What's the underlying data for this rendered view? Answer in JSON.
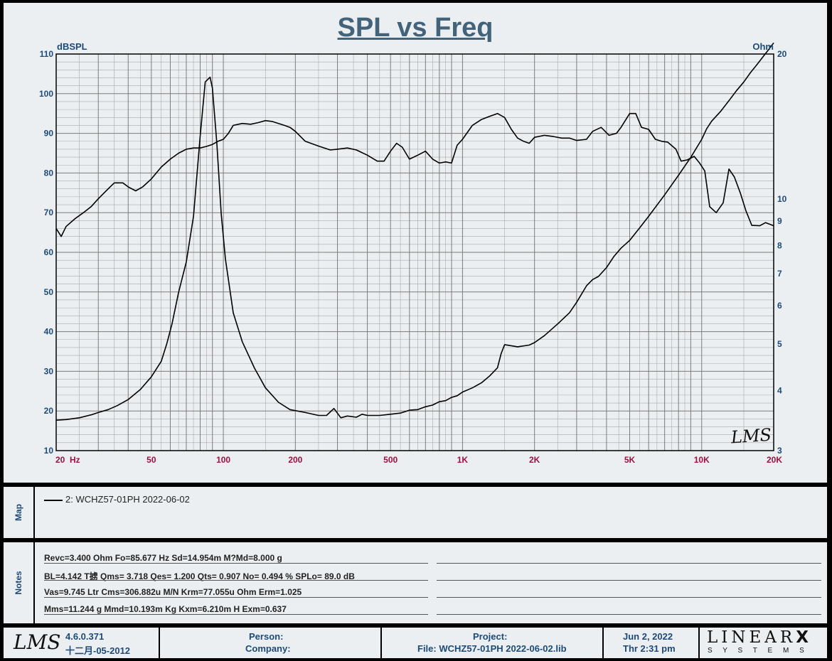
{
  "chart_data": {
    "type": "line",
    "title": "SPL vs Freq",
    "y_left_label": "dBSPL",
    "y_right_label": "Ohm",
    "x_scale": "log",
    "xlim": [
      20,
      20000
    ],
    "ylim_left": [
      10,
      110
    ],
    "ylim_right": [
      3,
      20
    ],
    "y_right_scale": "log",
    "grid": true,
    "x_ticks": [
      {
        "value": 20,
        "label": "20  Hz"
      },
      {
        "value": 50,
        "label": "50"
      },
      {
        "value": 100,
        "label": "100"
      },
      {
        "value": 200,
        "label": "200"
      },
      {
        "value": 500,
        "label": "500"
      },
      {
        "value": 1000,
        "label": "1K"
      },
      {
        "value": 2000,
        "label": "2K"
      },
      {
        "value": 5000,
        "label": "5K"
      },
      {
        "value": 10000,
        "label": "10K"
      },
      {
        "value": 20000,
        "label": "20K"
      }
    ],
    "y_left_ticks": [
      10,
      20,
      30,
      40,
      50,
      60,
      70,
      80,
      90,
      100,
      110
    ],
    "y_right_ticks": [
      3,
      4,
      5,
      6,
      7,
      8,
      9,
      10,
      20
    ],
    "series": [
      {
        "axis": "left",
        "unit": "dBSPL",
        "color": "#000000",
        "points": [
          [
            20,
            66
          ],
          [
            21,
            64
          ],
          [
            22,
            66.5
          ],
          [
            24,
            68.5
          ],
          [
            26,
            70
          ],
          [
            28,
            71.5
          ],
          [
            30,
            73.5
          ],
          [
            33,
            76
          ],
          [
            35,
            77.5
          ],
          [
            38,
            77.5
          ],
          [
            40,
            76.5
          ],
          [
            43,
            75.5
          ],
          [
            46,
            76.5
          ],
          [
            50,
            78.5
          ],
          [
            55,
            81.5
          ],
          [
            60,
            83.5
          ],
          [
            65,
            85
          ],
          [
            70,
            86
          ],
          [
            75,
            86.3
          ],
          [
            80,
            86.3
          ],
          [
            85,
            86.7
          ],
          [
            90,
            87.2
          ],
          [
            95,
            88
          ],
          [
            100,
            88.5
          ],
          [
            105,
            90
          ],
          [
            110,
            92
          ],
          [
            120,
            92.5
          ],
          [
            130,
            92.3
          ],
          [
            140,
            92.7
          ],
          [
            150,
            93.2
          ],
          [
            160,
            93
          ],
          [
            180,
            92
          ],
          [
            190,
            91.5
          ],
          [
            200,
            90.5
          ],
          [
            220,
            88
          ],
          [
            250,
            86.8
          ],
          [
            280,
            85.8
          ],
          [
            300,
            86
          ],
          [
            330,
            86.3
          ],
          [
            360,
            85.8
          ],
          [
            400,
            84.5
          ],
          [
            440,
            83
          ],
          [
            470,
            83
          ],
          [
            500,
            85.5
          ],
          [
            530,
            87.5
          ],
          [
            560,
            86.5
          ],
          [
            600,
            83.5
          ],
          [
            650,
            84.5
          ],
          [
            700,
            85.5
          ],
          [
            750,
            83.5
          ],
          [
            800,
            82.5
          ],
          [
            850,
            82.8
          ],
          [
            900,
            82.5
          ],
          [
            950,
            87
          ],
          [
            1000,
            88.5
          ],
          [
            1100,
            92
          ],
          [
            1200,
            93.5
          ],
          [
            1300,
            94.3
          ],
          [
            1400,
            95
          ],
          [
            1500,
            94
          ],
          [
            1600,
            91
          ],
          [
            1700,
            88.8
          ],
          [
            1800,
            88
          ],
          [
            1900,
            87.5
          ],
          [
            2000,
            89
          ],
          [
            2200,
            89.5
          ],
          [
            2400,
            89.2
          ],
          [
            2600,
            88.8
          ],
          [
            2800,
            88.8
          ],
          [
            3000,
            88.2
          ],
          [
            3300,
            88.5
          ],
          [
            3500,
            90.5
          ],
          [
            3800,
            91.5
          ],
          [
            4100,
            89.5
          ],
          [
            4400,
            90
          ],
          [
            4600,
            91.5
          ],
          [
            5000,
            95
          ],
          [
            5300,
            95
          ],
          [
            5600,
            91.5
          ],
          [
            6000,
            91
          ],
          [
            6400,
            88.5
          ],
          [
            6800,
            88
          ],
          [
            7200,
            87.8
          ],
          [
            7800,
            86
          ],
          [
            8200,
            83
          ],
          [
            8700,
            83.3
          ],
          [
            9300,
            84.2
          ],
          [
            9800,
            82.5
          ],
          [
            10300,
            80.5
          ],
          [
            10800,
            71.5
          ],
          [
            11500,
            70
          ],
          [
            12300,
            72.5
          ],
          [
            13000,
            81
          ],
          [
            13700,
            79
          ],
          [
            14500,
            75
          ],
          [
            15300,
            70.5
          ],
          [
            16200,
            66.8
          ],
          [
            17500,
            66.7
          ],
          [
            18500,
            67.5
          ],
          [
            20000,
            66.7
          ]
        ]
      },
      {
        "axis": "right",
        "unit": "Ohm",
        "color": "#000000",
        "points": [
          [
            20,
            3.47
          ],
          [
            22,
            3.48
          ],
          [
            25,
            3.51
          ],
          [
            28,
            3.56
          ],
          [
            30,
            3.6
          ],
          [
            33,
            3.65
          ],
          [
            36,
            3.72
          ],
          [
            40,
            3.83
          ],
          [
            45,
            4.02
          ],
          [
            50,
            4.27
          ],
          [
            55,
            4.6
          ],
          [
            58,
            5
          ],
          [
            61,
            5.5
          ],
          [
            65,
            6.4
          ],
          [
            70,
            7.4
          ],
          [
            75,
            9.2
          ],
          [
            80,
            13.5
          ],
          [
            84,
            17.5
          ],
          [
            88,
            17.9
          ],
          [
            90,
            17
          ],
          [
            94,
            13
          ],
          [
            98,
            9.3
          ],
          [
            102,
            7.5
          ],
          [
            110,
            5.8
          ],
          [
            120,
            5.05
          ],
          [
            135,
            4.45
          ],
          [
            150,
            4.05
          ],
          [
            170,
            3.78
          ],
          [
            190,
            3.65
          ],
          [
            220,
            3.6
          ],
          [
            250,
            3.55
          ],
          [
            270,
            3.55
          ],
          [
            290,
            3.67
          ],
          [
            310,
            3.51
          ],
          [
            330,
            3.54
          ],
          [
            360,
            3.52
          ],
          [
            380,
            3.57
          ],
          [
            400,
            3.55
          ],
          [
            450,
            3.55
          ],
          [
            500,
            3.57
          ],
          [
            550,
            3.59
          ],
          [
            600,
            3.64
          ],
          [
            650,
            3.65
          ],
          [
            700,
            3.7
          ],
          [
            750,
            3.73
          ],
          [
            800,
            3.79
          ],
          [
            850,
            3.81
          ],
          [
            900,
            3.87
          ],
          [
            950,
            3.9
          ],
          [
            1000,
            3.97
          ],
          [
            1100,
            4.05
          ],
          [
            1200,
            4.15
          ],
          [
            1300,
            4.29
          ],
          [
            1400,
            4.46
          ],
          [
            1450,
            4.77
          ],
          [
            1500,
            4.98
          ],
          [
            1700,
            4.93
          ],
          [
            1900,
            4.97
          ],
          [
            2000,
            5.03
          ],
          [
            2200,
            5.2
          ],
          [
            2500,
            5.5
          ],
          [
            2800,
            5.8
          ],
          [
            3000,
            6.1
          ],
          [
            3300,
            6.6
          ],
          [
            3500,
            6.8
          ],
          [
            3700,
            6.9
          ],
          [
            4000,
            7.2
          ],
          [
            4300,
            7.6
          ],
          [
            4600,
            7.9
          ],
          [
            5000,
            8.2
          ],
          [
            5500,
            8.7
          ],
          [
            6000,
            9.2
          ],
          [
            7000,
            10.2
          ],
          [
            8000,
            11.2
          ],
          [
            9000,
            12.2
          ],
          [
            10000,
            13.3
          ],
          [
            10500,
            14
          ],
          [
            11000,
            14.5
          ],
          [
            12000,
            15.2
          ],
          [
            13000,
            16
          ],
          [
            14000,
            16.8
          ],
          [
            15000,
            17.5
          ],
          [
            16000,
            18.3
          ],
          [
            17000,
            19
          ],
          [
            18000,
            19.7
          ],
          [
            19000,
            20.4
          ],
          [
            20000,
            21.1
          ]
        ]
      }
    ]
  },
  "map": {
    "side_label": "Map",
    "legend_entry": "2: WCHZ57-01PH 2022-06-02"
  },
  "notes": {
    "side_label": "Notes",
    "lines": [
      "Revc=3.400 Ohm  Fo=85.677 Hz  Sd=14.954m M?Md=8.000 g",
      "BL=4.142 T掳  Qms= 3.718  Qes= 1.200  Qts= 0.907  No= 0.494 %  SPLo= 89.0 dB",
      "Vas=9.745 Ltr  Cms=306.882u M/N  Krm=77.055u Ohm  Erm=1.025",
      "Mms=11.244 g  Mmd=10.193m Kg  Kxm=6.210m H  Exm=0.637"
    ]
  },
  "footer": {
    "logo_text": "LMS",
    "version": "4.6.0.371",
    "version_date": "十二月-05-2012",
    "person_label": "Person:",
    "company_label": "Company:",
    "project_label": "Project:",
    "file_label": "File: WCHZ57-01PH 2022-06-02.lib",
    "date": "Jun  2, 2022",
    "time": "Thr  2:31 pm",
    "brand": "LINEAR",
    "brand_x": "X",
    "brand_sub": "S Y S T E M S"
  },
  "watermark": "LMS",
  "colors": {
    "panel_bg": "#eceff1",
    "axis_blue": "#1c4a79",
    "freq_label": "#a01040",
    "title": "#43637a"
  }
}
